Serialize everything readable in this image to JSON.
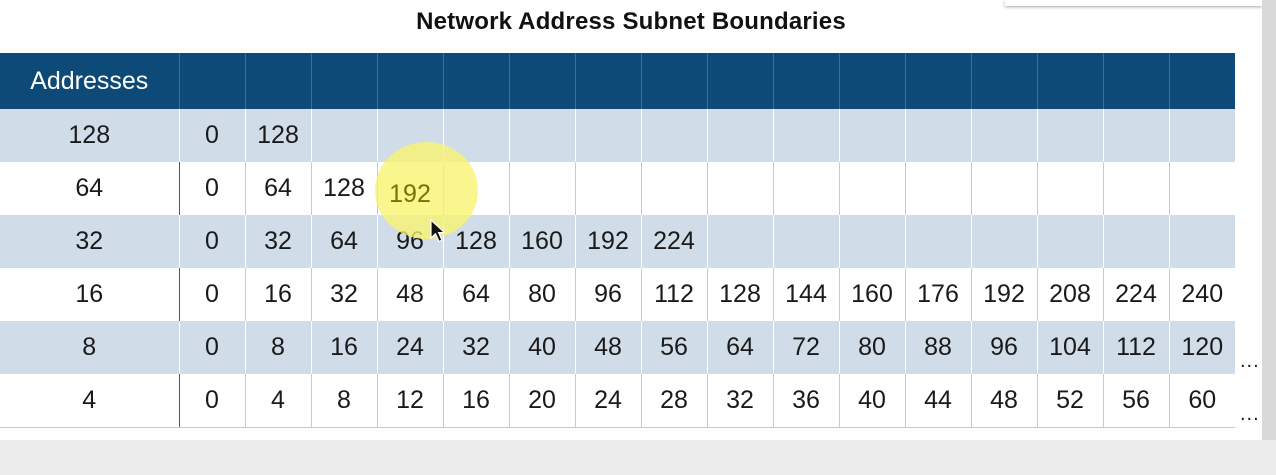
{
  "title": "Network Address Subnet Boundaries",
  "table": {
    "header_label": "Addresses",
    "rows": [
      {
        "size": "128",
        "values": [
          "0",
          "128"
        ]
      },
      {
        "size": "64",
        "values": [
          "0",
          "64",
          "128",
          "192"
        ]
      },
      {
        "size": "32",
        "values": [
          "0",
          "32",
          "64",
          "96",
          "128",
          "160",
          "192",
          "224"
        ]
      },
      {
        "size": "16",
        "values": [
          "0",
          "16",
          "32",
          "48",
          "64",
          "80",
          "96",
          "112",
          "128",
          "144",
          "160",
          "176",
          "192",
          "208",
          "224",
          "240"
        ]
      },
      {
        "size": "8",
        "values": [
          "0",
          "8",
          "16",
          "24",
          "32",
          "40",
          "48",
          "56",
          "64",
          "72",
          "80",
          "88",
          "96",
          "104",
          "112",
          "120"
        ]
      },
      {
        "size": "4",
        "values": [
          "0",
          "4",
          "8",
          "12",
          "16",
          "20",
          "24",
          "28",
          "32",
          "36",
          "40",
          "44",
          "48",
          "52",
          "56",
          "60"
        ]
      }
    ]
  },
  "continuation_marker": "...",
  "highlight": {
    "value": "192",
    "color": "#f8f46e"
  },
  "colors": {
    "header_bg": "#0d4a78",
    "shaded_row_bg": "#d0dde8"
  },
  "icons": {
    "cursor": "mouse-pointer-icon"
  }
}
